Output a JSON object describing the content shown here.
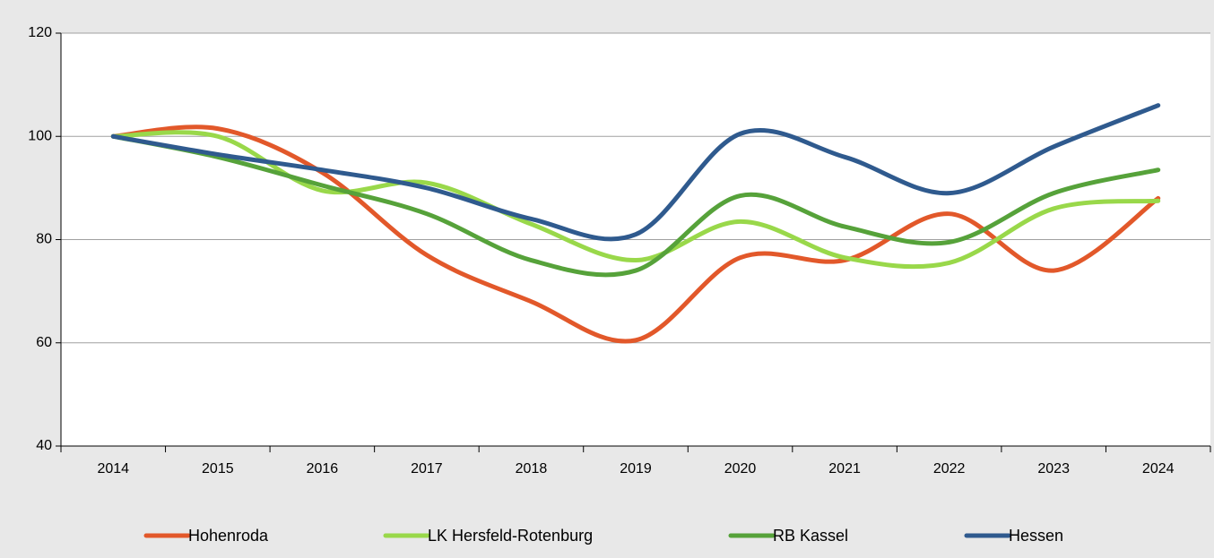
{
  "chart_data": {
    "type": "line",
    "categories": [
      "2014",
      "2015",
      "2016",
      "2017",
      "2018",
      "2019",
      "2020",
      "2021",
      "2022",
      "2023",
      "2024"
    ],
    "series": [
      {
        "name": "Hohenroda",
        "color": "#e2582a",
        "values": [
          100,
          101.5,
          93,
          77,
          68,
          60.5,
          76.5,
          76,
          85,
          74,
          88
        ]
      },
      {
        "name": "LK Hersfeld-Rotenburg",
        "color": "#99d84a",
        "values": [
          100,
          100,
          89.5,
          91,
          83,
          76,
          83.5,
          76.5,
          75.5,
          86,
          87.5
        ]
      },
      {
        "name": "RB Kassel",
        "color": "#56a23a",
        "values": [
          100,
          96,
          90.5,
          85,
          76,
          74,
          88.5,
          82.5,
          79.5,
          89,
          93.5
        ]
      },
      {
        "name": "Hessen",
        "color": "#2f5a8e",
        "values": [
          100,
          96.5,
          93.5,
          90,
          84,
          81,
          100.5,
          96,
          89,
          98,
          106
        ]
      }
    ],
    "ylim": [
      40,
      120
    ],
    "yticks": [
      40,
      60,
      80,
      100,
      120
    ],
    "grid": true,
    "legend": "bottom"
  }
}
